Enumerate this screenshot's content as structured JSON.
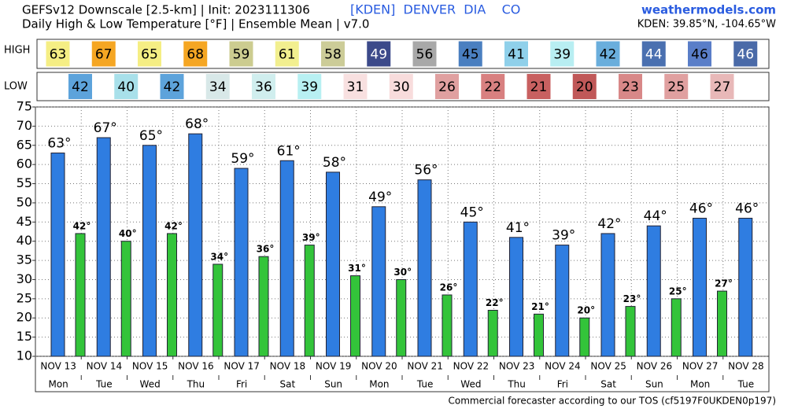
{
  "chart_data": {
    "type": "bar",
    "title": "GEFSv12 Downscale [2.5-km] | Init: 2023111306",
    "subtitle": "Daily High & Low Temperature [°F] | Ensemble Mean | v7.0",
    "station": "[KDEN]  DENVER  DIA    CO",
    "site": "weathermodels.com",
    "location": "KDEN: 39.85°N, -104.65°W",
    "footer": "Commercial forecaster according to our TOS (cf5197F0UKDEN0p197)",
    "categories": [
      "NOV 13",
      "NOV 14",
      "NOV 15",
      "NOV 16",
      "NOV 17",
      "NOV 18",
      "NOV 19",
      "NOV 20",
      "NOV 21",
      "NOV 22",
      "NOV 23",
      "NOV 24",
      "NOV 25",
      "NOV 26",
      "NOV 27",
      "NOV 28"
    ],
    "weekdays": [
      "Mon",
      "Tue",
      "Wed",
      "Thu",
      "Fri",
      "Sat",
      "Sun",
      "Mon",
      "Tue",
      "Wed",
      "Thu",
      "Fri",
      "Sat",
      "Sun",
      "Mon",
      "Tue"
    ],
    "series": [
      {
        "name": "HIGH",
        "color": "#2f7de1",
        "values": [
          63,
          67,
          65,
          68,
          59,
          61,
          58,
          49,
          56,
          45,
          41,
          39,
          42,
          44,
          46,
          46
        ],
        "value_labels": [
          "63°",
          "67°",
          "65°",
          "68°",
          "59°",
          "61°",
          "58°",
          "49°",
          "56°",
          "45°",
          "41°",
          "39°",
          "42°",
          "44°",
          "46°",
          "46°"
        ],
        "cell_colors": [
          "#f5ee84",
          "#f5a623",
          "#f5ee84",
          "#f5a623",
          "#cccc90",
          "#f2ef8f",
          "#cccc98",
          "#3c4a8a",
          "#a8a8a8",
          "#4a7fc0",
          "#8fd0ea",
          "#b8eef2",
          "#6aaedc",
          "#4a70b0",
          "#5a7ec8",
          "#4a6aa8"
        ]
      },
      {
        "name": "LOW",
        "color": "#33c43a",
        "values": [
          42,
          40,
          42,
          34,
          36,
          39,
          31,
          30,
          26,
          22,
          21,
          20,
          23,
          25,
          27,
          null
        ],
        "value_labels": [
          "42°",
          "40°",
          "42°",
          "34°",
          "36°",
          "39°",
          "31°",
          "30°",
          "26°",
          "22°",
          "21°",
          "20°",
          "23°",
          "25°",
          "27°",
          null
        ],
        "cell_colors": [
          "#5da3db",
          "#a8e0ea",
          "#5da3db",
          "#d8e8e8",
          "#d0eeee",
          "#b8f0f2",
          "#f8e0e0",
          "#f8dcdc",
          "#e0a0a0",
          "#d88080",
          "#c86060",
          "#c05858",
          "#d88888",
          "#e0a0a0",
          "#e8b8b8",
          null
        ]
      }
    ],
    "ylim": [
      10,
      75
    ],
    "yticks": [
      10,
      15,
      20,
      25,
      30,
      35,
      40,
      45,
      50,
      55,
      60,
      65,
      70,
      75
    ],
    "grid": true
  }
}
